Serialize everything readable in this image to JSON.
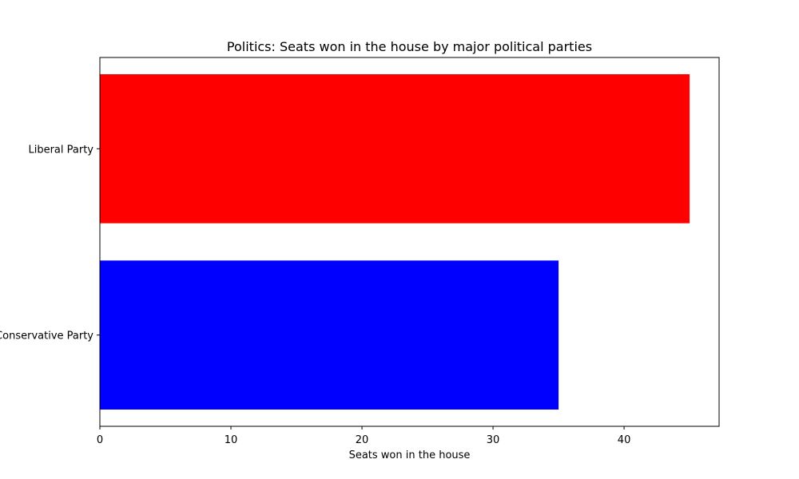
{
  "chart_data": {
    "type": "bar",
    "orientation": "horizontal",
    "title": "Politics: Seats won in the house by major political parties",
    "xlabel": "Seats won in the house",
    "ylabel": "",
    "categories": [
      "Liberal Party",
      "Conservative Party"
    ],
    "values": [
      45,
      35
    ],
    "colors": [
      "#ff0000",
      "#0000ff"
    ],
    "xlim": [
      0,
      47.25
    ],
    "xticks": [
      0,
      10,
      20,
      30,
      40
    ],
    "grid": false,
    "legend": "none"
  }
}
